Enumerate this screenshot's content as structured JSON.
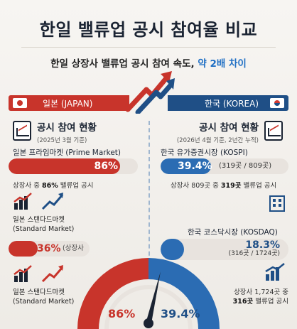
{
  "header": {
    "title": "한일 밸류업 공시 참여율 비교",
    "subtitle_main": "한일 상장사 밸류업 공시 참여 속도, ",
    "subtitle_highlight": "약 2배 차이"
  },
  "japan": {
    "label": "일본 (JAPAN)",
    "section_title": "공시 참여 현황",
    "section_note": "(2025년 3월 기준)",
    "prime_label": "일본 프라임마켓 (Prime Market)",
    "prime_pct": "86%",
    "prime_value": 86,
    "prime_desc_pre": "상장사 중 ",
    "prime_desc_bold": "86%",
    "prime_desc_post": " 밸류업 공시",
    "standard_label_1": "일본 스탠다드마켓",
    "standard_label_2": "(Standard Market)",
    "standard_pct": "36%",
    "standard_value": 36,
    "standard_note": "(상장사 중)",
    "standard2_label_1": "일본 스탠다드마켓",
    "standard2_label_2": "(Standard Market)",
    "gauge_pct": "86%",
    "color": "#c8342b"
  },
  "korea": {
    "label": "한국 (KOREA)",
    "section_title": "공시 참여 현황",
    "section_note": "(2026년 4월 기준, 2년간 누적)",
    "kospi_label": "한국 유가증권시장 (KOSPI)",
    "kospi_pct": "39.4%",
    "kospi_value": 39.4,
    "kospi_count": "(319곳 / 809곳)",
    "kospi_desc_pre": "상장사 809곳 중 ",
    "kospi_desc_bold": "319곳",
    "kospi_desc_post": " 밸류업 공시",
    "kosdaq_label": "한국 코스닥시장 (KOSDAQ)",
    "kosdaq_pct": "18.3%",
    "kosdaq_value": 18.3,
    "kosdaq_count": "(316곳 / 1724곳)",
    "kosdaq_desc_1": "상장사 1,724곳 중",
    "kosdaq_desc_2_bold": "316곳",
    "kosdaq_desc_2_post": " 밸류업 공시",
    "gauge_pct": "39.4%",
    "color": "#2b6cb3"
  },
  "icons": {
    "flag_jp": "japan-flag-icon",
    "flag_kr": "korea-flag-icon",
    "report": "report-chart-icon",
    "growth": "growth-chart-icon",
    "building": "building-icon"
  }
}
